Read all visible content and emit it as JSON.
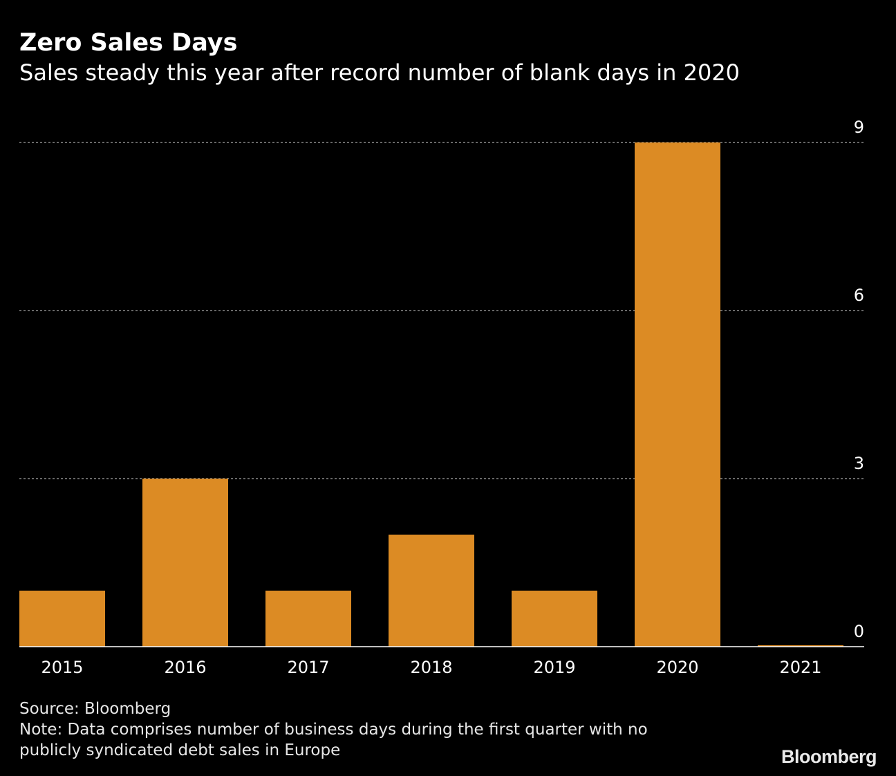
{
  "header": {
    "title": "Zero Sales Days",
    "subtitle": "Sales steady this year after record number of blank days in 2020"
  },
  "chart_data": {
    "type": "bar",
    "categories": [
      "2015",
      "2016",
      "2017",
      "2018",
      "2019",
      "2020",
      "2021"
    ],
    "values": [
      1,
      3,
      1,
      2,
      1,
      9,
      0
    ],
    "y_ticks": [
      "0",
      "3",
      "6",
      "9"
    ],
    "ylim": [
      0,
      9
    ],
    "ylabel": "",
    "xlabel": "",
    "grid": true,
    "y_axis_position": "right",
    "bar_color": "#dc8b24"
  },
  "footer": {
    "source": "Source: Bloomberg",
    "note_line1": "Note: Data comprises number of business days during the first quarter with no",
    "note_line2": "publicly syndicated debt sales in Europe",
    "brand": "Bloomberg"
  },
  "colors": {
    "background": "#000000",
    "text": "#ffffff",
    "grid": "#8a8a8a"
  }
}
